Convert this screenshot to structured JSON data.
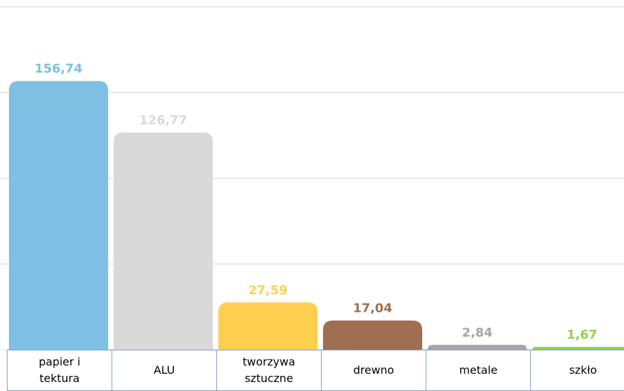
{
  "chart_data": {
    "type": "bar",
    "categories": [
      "papier i tektura",
      "ALU",
      "tworzywa sztuczne",
      "drewno",
      "metale",
      "szkło"
    ],
    "values": [
      156.74,
      126.77,
      27.59,
      17.04,
      2.84,
      1.67
    ],
    "value_labels": [
      "156,74",
      "126,77",
      "27,59",
      "17,04",
      "2,84",
      "1,67"
    ],
    "colors": [
      "#7fbfe3",
      "#d9d9d9",
      "#ffd04f",
      "#a06e50",
      "#a6a6a6",
      "#92d050"
    ],
    "ylim": [
      0,
      200
    ],
    "yticks": [
      0,
      50,
      100,
      150,
      200
    ],
    "grid": true
  }
}
